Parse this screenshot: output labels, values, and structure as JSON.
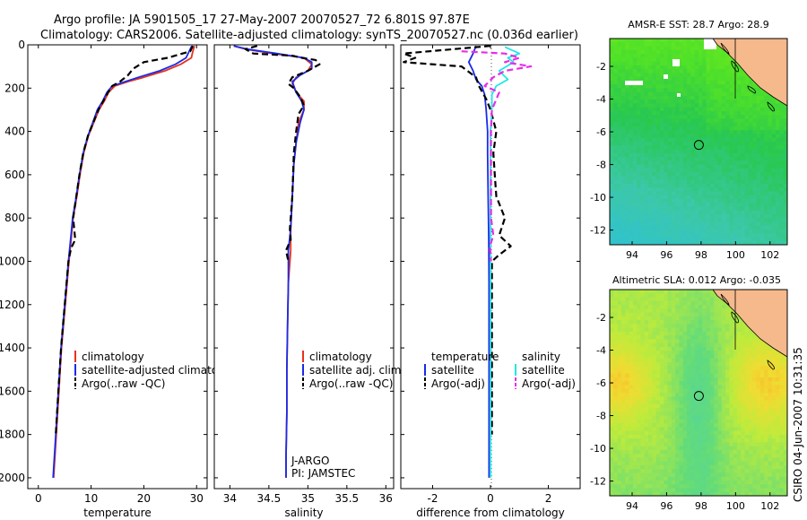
{
  "header": {
    "line1": "Argo profile: JA 5901505_17 27-May-2007 20070527_72 6.801S 97.87E",
    "line2": "Climatology: CARS2006. Satellite-adjusted climatology: synTS_20070527.nc (0.036d earlier)"
  },
  "footer": {
    "credit": "CSIRO 04-Jun-2007 10:31:35"
  },
  "colors": {
    "climatology": "#e8311a",
    "satellite": "#1a2be8",
    "argo": "#000000",
    "sal_satellite": "#22e6e6",
    "sal_argo": "#e62ee6",
    "land": "#f5b98c"
  },
  "chart_data": [
    {
      "type": "line",
      "id": "temperature",
      "xlabel": "temperature",
      "ylabel": "",
      "xlim": [
        -2,
        32
      ],
      "ylim": [
        0,
        2050
      ],
      "y_inverted": true,
      "xticks": [
        "0",
        "10",
        "20",
        "30"
      ],
      "xtick_values": [
        0,
        10,
        20,
        30
      ],
      "yticks": [
        "0",
        "200",
        "400",
        "600",
        "800",
        "1000",
        "1200",
        "1400",
        "1600",
        "1800",
        "2000"
      ],
      "ytick_values": [
        0,
        200,
        400,
        600,
        800,
        1000,
        1200,
        1400,
        1600,
        1800,
        2000
      ],
      "legend": [
        "climatology",
        "satellite-adjusted climatology",
        "Argo(..raw -QC)"
      ],
      "series": [
        {
          "name": "climatology",
          "style": "solid",
          "color": "climatology",
          "points": [
            [
              29.6,
              5
            ],
            [
              29.3,
              30
            ],
            [
              29,
              60
            ],
            [
              27,
              90
            ],
            [
              24,
              120
            ],
            [
              20,
              150
            ],
            [
              17,
              170
            ],
            [
              14.5,
              190
            ],
            [
              13.3,
              220
            ],
            [
              12.5,
              260
            ],
            [
              11.5,
              300
            ],
            [
              10.5,
              360
            ],
            [
              9.5,
              420
            ],
            [
              8.6,
              500
            ],
            [
              7.9,
              600
            ],
            [
              7.3,
              700
            ],
            [
              6.6,
              800
            ],
            [
              6.3,
              880
            ],
            [
              5.8,
              1000
            ],
            [
              5.1,
              1200
            ],
            [
              4.4,
              1400
            ],
            [
              3.9,
              1600
            ],
            [
              3.4,
              1800
            ],
            [
              2.9,
              2000
            ]
          ]
        },
        {
          "name": "satellite-adjusted climatology",
          "style": "solid",
          "color": "satellite",
          "points": [
            [
              29.1,
              5
            ],
            [
              28.6,
              30
            ],
            [
              28,
              60
            ],
            [
              26,
              90
            ],
            [
              23,
              120
            ],
            [
              19,
              150
            ],
            [
              16.5,
              170
            ],
            [
              14,
              190
            ],
            [
              13,
              220
            ],
            [
              12.2,
              260
            ],
            [
              11.2,
              300
            ],
            [
              10.3,
              360
            ],
            [
              9.4,
              420
            ],
            [
              8.5,
              500
            ],
            [
              7.8,
              600
            ],
            [
              7.2,
              700
            ],
            [
              6.5,
              800
            ],
            [
              6.2,
              880
            ],
            [
              5.7,
              1000
            ],
            [
              5,
              1200
            ],
            [
              4.3,
              1400
            ],
            [
              3.8,
              1600
            ],
            [
              3.3,
              1800
            ],
            [
              2.8,
              2000
            ]
          ]
        },
        {
          "name": "Argo(..raw -QC)",
          "style": "dashed",
          "color": "argo",
          "points": [
            [
              29.3,
              5
            ],
            [
              28.8,
              30
            ],
            [
              24.5,
              60
            ],
            [
              20,
              80
            ],
            [
              18,
              110
            ],
            [
              17,
              140
            ],
            [
              15.5,
              170
            ],
            [
              14,
              190
            ],
            [
              13.2,
              220
            ],
            [
              12.3,
              260
            ],
            [
              11.4,
              300
            ],
            [
              10.4,
              360
            ],
            [
              9.4,
              420
            ],
            [
              8.5,
              500
            ],
            [
              7.8,
              600
            ],
            [
              7.2,
              700
            ],
            [
              6.6,
              800
            ],
            [
              7,
              900
            ],
            [
              6.2,
              940
            ],
            [
              5.7,
              1000
            ],
            [
              5,
              1200
            ],
            [
              4.3,
              1400
            ],
            [
              3.8,
              1600
            ],
            [
              3.3,
              1800
            ]
          ]
        }
      ]
    },
    {
      "type": "line",
      "id": "salinity",
      "xlabel": "salinity",
      "xlim": [
        33.8,
        36.1
      ],
      "ylim": [
        0,
        2050
      ],
      "y_inverted": true,
      "xticks": [
        "34",
        "34.5",
        "35",
        "35.5",
        "36"
      ],
      "xtick_values": [
        34,
        34.5,
        35,
        35.5,
        36
      ],
      "legend": [
        "climatology",
        "satellite adj. clim.",
        "Argo(..raw -QC)"
      ],
      "annotations": [
        "J-ARGO",
        "PI: JAMSTEC"
      ],
      "series": [
        {
          "name": "climatology",
          "style": "solid",
          "color": "climatology",
          "points": [
            [
              34.05,
              5
            ],
            [
              34.2,
              20
            ],
            [
              34.55,
              40
            ],
            [
              34.95,
              60
            ],
            [
              35.05,
              90
            ],
            [
              35,
              120
            ],
            [
              34.85,
              150
            ],
            [
              34.8,
              180
            ],
            [
              34.85,
              220
            ],
            [
              34.95,
              260
            ],
            [
              34.95,
              300
            ],
            [
              34.88,
              360
            ],
            [
              34.85,
              450
            ],
            [
              34.82,
              550
            ],
            [
              34.8,
              700
            ],
            [
              34.78,
              850
            ],
            [
              34.78,
              950
            ],
            [
              34.75,
              1100
            ],
            [
              34.74,
              1300
            ],
            [
              34.73,
              1500
            ],
            [
              34.73,
              1700
            ],
            [
              34.72,
              1900
            ],
            [
              34.72,
              2000
            ]
          ]
        },
        {
          "name": "satellite adj. clim.",
          "style": "solid",
          "color": "satellite",
          "points": [
            [
              34.05,
              5
            ],
            [
              34.22,
              20
            ],
            [
              34.6,
              40
            ],
            [
              34.95,
              60
            ],
            [
              35.05,
              80
            ],
            [
              35.05,
              110
            ],
            [
              34.9,
              140
            ],
            [
              34.8,
              170
            ],
            [
              34.85,
              220
            ],
            [
              34.92,
              260
            ],
            [
              34.95,
              300
            ],
            [
              34.9,
              360
            ],
            [
              34.85,
              450
            ],
            [
              34.82,
              550
            ],
            [
              34.8,
              700
            ],
            [
              34.78,
              850
            ],
            [
              34.75,
              950
            ],
            [
              34.75,
              1100
            ],
            [
              34.74,
              1300
            ],
            [
              34.73,
              1500
            ],
            [
              34.73,
              1700
            ],
            [
              34.72,
              1900
            ],
            [
              34.72,
              2000
            ]
          ]
        },
        {
          "name": "Argo(..raw -QC)",
          "style": "dashed",
          "color": "argo",
          "points": [
            [
              34.35,
              5
            ],
            [
              34.2,
              20
            ],
            [
              34.3,
              40
            ],
            [
              34.8,
              50
            ],
            [
              34.92,
              60
            ],
            [
              35.1,
              70
            ],
            [
              35.15,
              90
            ],
            [
              35,
              120
            ],
            [
              34.8,
              150
            ],
            [
              34.75,
              180
            ],
            [
              34.82,
              200
            ],
            [
              34.9,
              240
            ],
            [
              34.95,
              280
            ],
            [
              34.88,
              320
            ],
            [
              34.85,
              400
            ],
            [
              34.82,
              500
            ],
            [
              34.8,
              700
            ],
            [
              34.77,
              850
            ],
            [
              34.78,
              900
            ],
            [
              34.72,
              950
            ],
            [
              34.75,
              1000
            ]
          ]
        }
      ]
    },
    {
      "type": "line",
      "id": "difference",
      "xlabel": "difference from climatology",
      "xlim": [
        -3.1,
        3.1
      ],
      "ylim": [
        0,
        2050
      ],
      "y_inverted": true,
      "xticks": [
        "-2",
        "0",
        "2"
      ],
      "xtick_values": [
        -2,
        0,
        2
      ],
      "legend_left": {
        "title": "temperature",
        "items": [
          "satellite",
          "Argo(-adj)"
        ]
      },
      "legend_right": {
        "title": "salinity",
        "items": [
          "satellite",
          "Argo(-adj)"
        ]
      },
      "series": [
        {
          "name": "temperature satellite",
          "style": "solid",
          "color": "satellite",
          "points": [
            [
              -0.5,
              5
            ],
            [
              -0.6,
              40
            ],
            [
              -0.75,
              80
            ],
            [
              -0.6,
              120
            ],
            [
              -0.5,
              160
            ],
            [
              -0.3,
              190
            ],
            [
              -0.2,
              230
            ],
            [
              -0.15,
              300
            ],
            [
              -0.1,
              400
            ],
            [
              -0.1,
              500
            ],
            [
              -0.08,
              700
            ],
            [
              -0.06,
              900
            ],
            [
              -0.05,
              1100
            ],
            [
              -0.05,
              1300
            ],
            [
              -0.05,
              1500
            ],
            [
              -0.05,
              1700
            ],
            [
              -0.05,
              1900
            ],
            [
              -0.05,
              2000
            ]
          ]
        },
        {
          "name": "temperature Argo(-adj)",
          "style": "dashed",
          "color": "argo",
          "points": [
            [
              0,
              5
            ],
            [
              -3,
              40
            ],
            [
              -2.6,
              60
            ],
            [
              -3,
              80
            ],
            [
              -1,
              100
            ],
            [
              -0.5,
              150
            ],
            [
              -0.4,
              190
            ],
            [
              -0.15,
              250
            ],
            [
              0,
              300
            ],
            [
              0.2,
              400
            ],
            [
              0.1,
              500
            ],
            [
              0.15,
              600
            ],
            [
              0.2,
              700
            ],
            [
              0.5,
              800
            ],
            [
              0.3,
              880
            ],
            [
              0.7,
              930
            ],
            [
              0.3,
              970
            ],
            [
              0.05,
              1000
            ],
            [
              0.05,
              1200
            ],
            [
              0.05,
              1400
            ],
            [
              0.05,
              1600
            ],
            [
              0.05,
              1800
            ]
          ]
        },
        {
          "name": "salinity satellite",
          "style": "solid",
          "color": "sal_satellite",
          "points": [
            [
              0.5,
              10
            ],
            [
              1,
              40
            ],
            [
              0.6,
              60
            ],
            [
              0.8,
              80
            ],
            [
              0.3,
              120
            ],
            [
              0.6,
              160
            ],
            [
              0.2,
              190
            ],
            [
              0.05,
              230
            ],
            [
              0.05,
              300
            ],
            [
              0,
              400
            ],
            [
              0,
              600
            ],
            [
              0,
              800
            ],
            [
              0,
              1000
            ],
            [
              0,
              1200
            ],
            [
              0,
              1400
            ],
            [
              0,
              1600
            ],
            [
              0,
              1800
            ],
            [
              0,
              2000
            ]
          ]
        },
        {
          "name": "salinity Argo(-adj)",
          "style": "dashed",
          "color": "sal_argo",
          "points": [
            [
              -1,
              30
            ],
            [
              0.5,
              40
            ],
            [
              1,
              60
            ],
            [
              0.5,
              80
            ],
            [
              1.4,
              100
            ],
            [
              0.5,
              120
            ],
            [
              0.1,
              150
            ],
            [
              -0.2,
              190
            ],
            [
              0.3,
              220
            ],
            [
              0.05,
              300
            ],
            [
              0.02,
              400
            ],
            [
              0.02,
              600
            ],
            [
              0.02,
              800
            ],
            [
              0.1,
              880
            ],
            [
              -0.02,
              930
            ],
            [
              0.02,
              1000
            ]
          ]
        }
      ]
    },
    {
      "type": "heatmap",
      "id": "sst_map",
      "title": "AMSR-E SST: 28.7 Argo: 28.9",
      "xlim": [
        92.7,
        103
      ],
      "ylim": [
        -12.9,
        -0.3
      ],
      "xticks": [
        "94",
        "96",
        "98",
        "100",
        "102"
      ],
      "xtick_values": [
        94,
        96,
        98,
        100,
        102
      ],
      "yticks": [
        "-2",
        "-4",
        "-6",
        "-8",
        "-10",
        "-12"
      ],
      "ytick_values": [
        -2,
        -4,
        -6,
        -8,
        -10,
        -12
      ],
      "float_position": [
        97.87,
        -6.801
      ]
    },
    {
      "type": "heatmap",
      "id": "sla_map",
      "title": "Altimetric SLA: 0.012 Argo: -0.035",
      "xlim": [
        92.7,
        103
      ],
      "ylim": [
        -12.9,
        -0.3
      ],
      "xticks": [
        "94",
        "96",
        "98",
        "100",
        "102"
      ],
      "xtick_values": [
        94,
        96,
        98,
        100,
        102
      ],
      "yticks": [
        "-2",
        "-4",
        "-6",
        "-8",
        "-10",
        "-12"
      ],
      "ytick_values": [
        -2,
        -4,
        -6,
        -8,
        -10,
        -12
      ],
      "float_position": [
        97.87,
        -6.801
      ]
    }
  ]
}
